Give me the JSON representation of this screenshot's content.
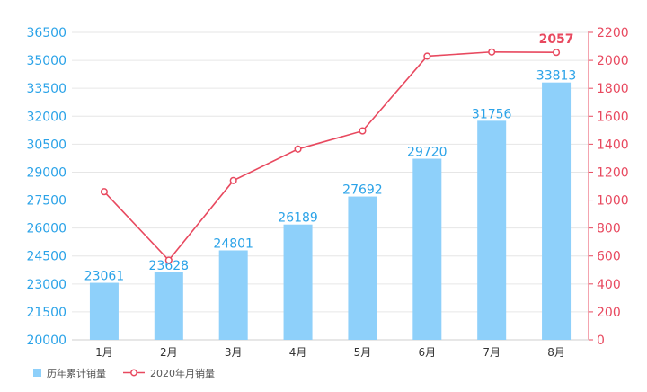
{
  "chart_data": {
    "type": "bar",
    "categories": [
      "1月",
      "2月",
      "3月",
      "4月",
      "5月",
      "6月",
      "7月",
      "8月"
    ],
    "series": [
      {
        "name": "历年累计销量",
        "type": "bar",
        "axis": "left",
        "color": "#8ED0FA",
        "values": [
          23061,
          23628,
          24801,
          26189,
          27692,
          29720,
          31756,
          33813
        ],
        "labels": [
          "23061",
          "23628",
          "24801",
          "26189",
          "27692",
          "29720",
          "31756",
          "33813"
        ]
      },
      {
        "name": "2020年月销量",
        "type": "line",
        "axis": "right",
        "color": "#E8495F",
        "values": [
          1060,
          570,
          1140,
          1365,
          1495,
          2030,
          2060,
          2057
        ],
        "last_label": "2057"
      }
    ],
    "y_left": {
      "ylim": [
        20000,
        36500
      ],
      "ticks": [
        "20000",
        "21500",
        "23000",
        "24500",
        "26000",
        "27500",
        "29000",
        "30500",
        "32000",
        "33500",
        "35000",
        "36500"
      ],
      "color": "#2BA3E8"
    },
    "y_right": {
      "ylim": [
        0,
        2200
      ],
      "ticks": [
        "0",
        "200",
        "400",
        "600",
        "800",
        "1000",
        "1200",
        "1400",
        "1600",
        "1800",
        "2000",
        "2200"
      ],
      "color": "#E8495F"
    },
    "grid": true,
    "legend": "bottom-left",
    "title": "",
    "xlabel": "",
    "ylabel": ""
  }
}
